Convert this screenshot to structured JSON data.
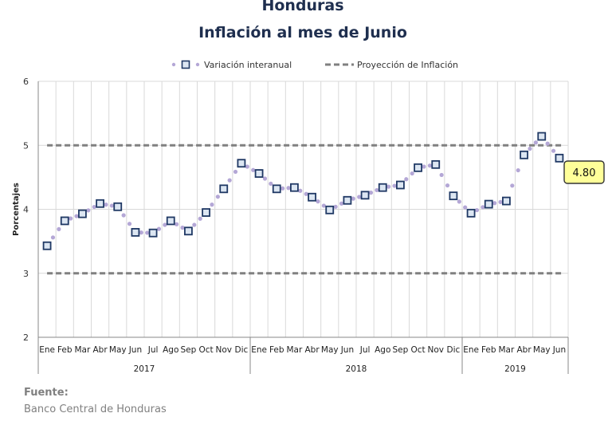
{
  "title": "Honduras",
  "subtitle": "Inflación al mes de Junio",
  "legend": {
    "series_label": "Variación interanual",
    "projection_label": "Proyección de Inflación"
  },
  "source": {
    "heading": "Fuente:",
    "text": "Banco Central de Honduras"
  },
  "colors": {
    "marker_border": "#1f3864",
    "marker_fill": "#dce6f2",
    "dots": "#b4a7d6",
    "projection_line": "#808080",
    "callout_fill": "#ffff99",
    "title": "#1f2f4f"
  },
  "chart_data": {
    "type": "line",
    "title": "Honduras",
    "subtitle": "Inflación al mes de Junio",
    "ylabel": "Porcentajes",
    "ylim": [
      2,
      6
    ],
    "yticks": [
      "2",
      "3",
      "4",
      "5",
      "6"
    ],
    "grid": true,
    "legend_position": "top",
    "categories": [
      "Ene",
      "Feb",
      "Mar",
      "Abr",
      "May",
      "Jun",
      "Jul",
      "Ago",
      "Sep",
      "Oct",
      "Nov",
      "Dic",
      "Ene",
      "Feb",
      "Mar",
      "Abr",
      "May",
      "Jun",
      "Jul",
      "Ago",
      "Sep",
      "Oct",
      "Nov",
      "Dic",
      "Ene",
      "Feb",
      "Mar",
      "Abr",
      "May",
      "Jun"
    ],
    "years": [
      {
        "label": "2017",
        "start": 0,
        "end": 11
      },
      {
        "label": "2018",
        "start": 12,
        "end": 23
      },
      {
        "label": "2019",
        "start": 24,
        "end": 29
      }
    ],
    "series": [
      {
        "name": "Variación interanual",
        "values": [
          3.43,
          3.82,
          3.93,
          4.09,
          4.04,
          3.64,
          3.63,
          3.82,
          3.66,
          3.95,
          4.32,
          4.72,
          4.56,
          4.32,
          4.34,
          4.19,
          3.99,
          4.14,
          4.22,
          4.34,
          4.38,
          4.65,
          4.7,
          4.21,
          3.94,
          4.08,
          4.13,
          4.85,
          5.14,
          4.8
        ]
      },
      {
        "name": "Proyección de Inflación",
        "band": [
          3,
          5
        ]
      }
    ],
    "annotation": {
      "label": "4.80",
      "index": 29
    }
  }
}
